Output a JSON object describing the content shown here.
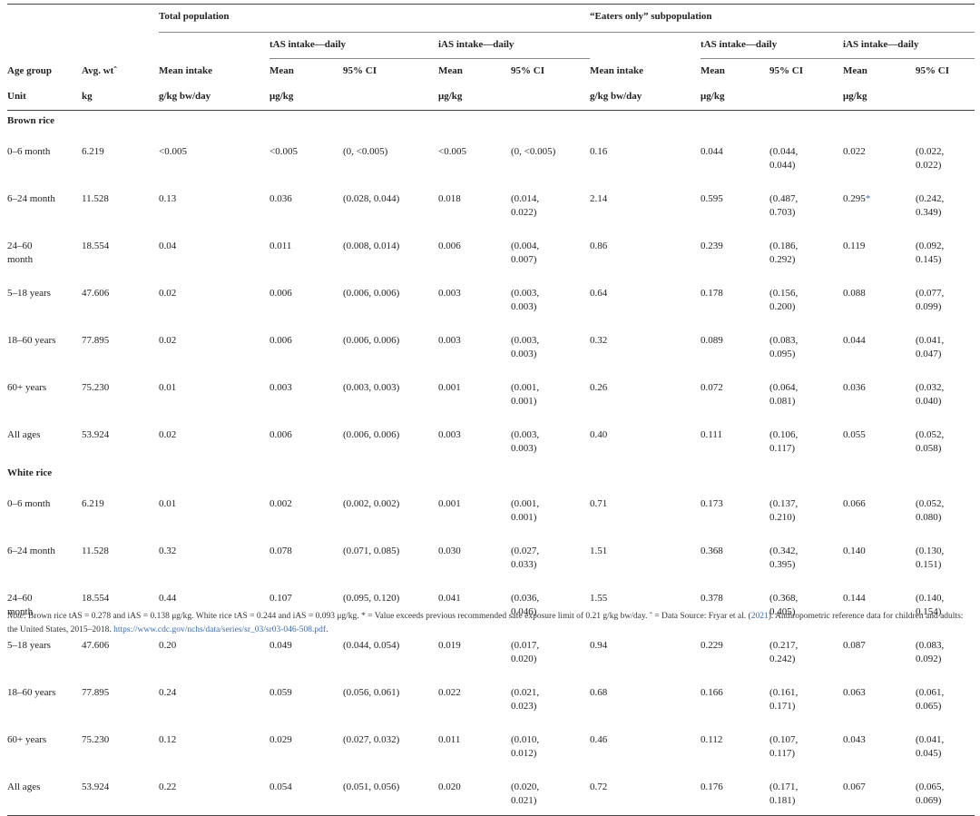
{
  "headers": {
    "total_population": "Total population",
    "eaters_only": "“Eaters only” subpopulation",
    "tas_daily": "tAS intake—daily",
    "ias_daily": "iAS intake—daily",
    "age_group": "Age group",
    "avg_wt": "Avg. wtˆ",
    "mean_intake": "Mean intake",
    "mean": "Mean",
    "ci95": "95% CI",
    "unit": "Unit",
    "kg": "kg",
    "g_per_kg_bw_day": "g/kg bw/day",
    "ug_per_kg": "μg/kg"
  },
  "sections": [
    {
      "title": "Brown rice",
      "rows": [
        {
          "age": "0–6 month",
          "wt": "6.219",
          "t_mi": "<0.005",
          "t_tm": "<0.005",
          "t_tci": "(0, <0.005)",
          "t_im": "<0.005",
          "t_ici": "(0, <0.005)",
          "e_mi": "0.16",
          "e_tm": "0.044",
          "e_tci": "(0.044,\n0.044)",
          "e_im": "0.022",
          "e_ici": "(0.022,\n0.022)"
        },
        {
          "age": "6–24 month",
          "wt": "11.528",
          "t_mi": "0.13",
          "t_tm": "0.036",
          "t_tci": "(0.028, 0.044)",
          "t_im": "0.018",
          "t_ici": "(0.014,\n0.022)",
          "e_mi": "2.14",
          "e_tm": "0.595",
          "e_tci": "(0.487,\n0.703)",
          "e_im": "0.295",
          "e_im_star": "*",
          "e_ici": "(0.242,\n0.349)"
        },
        {
          "age": "24–60\nmonth",
          "wt": "18.554",
          "t_mi": "0.04",
          "t_tm": "0.011",
          "t_tci": "(0.008, 0.014)",
          "t_im": "0.006",
          "t_ici": "(0.004,\n0.007)",
          "e_mi": "0.86",
          "e_tm": "0.239",
          "e_tci": "(0.186,\n0.292)",
          "e_im": "0.119",
          "e_ici": "(0.092,\n0.145)"
        },
        {
          "age": "5–18 years",
          "wt": "47.606",
          "t_mi": "0.02",
          "t_tm": "0.006",
          "t_tci": "(0.006, 0.006)",
          "t_im": "0.003",
          "t_ici": "(0.003,\n0.003)",
          "e_mi": "0.64",
          "e_tm": "0.178",
          "e_tci": "(0.156,\n0.200)",
          "e_im": "0.088",
          "e_ici": "(0.077,\n0.099)"
        },
        {
          "age": "18–60 years",
          "wt": "77.895",
          "t_mi": "0.02",
          "t_tm": "0.006",
          "t_tci": "(0.006, 0.006)",
          "t_im": "0.003",
          "t_ici": "(0.003,\n0.003)",
          "e_mi": "0.32",
          "e_tm": "0.089",
          "e_tci": "(0.083,\n0.095)",
          "e_im": "0.044",
          "e_ici": "(0.041,\n0.047)"
        },
        {
          "age": "60+ years",
          "wt": "75.230",
          "t_mi": "0.01",
          "t_tm": "0.003",
          "t_tci": "(0.003, 0.003)",
          "t_im": "0.001",
          "t_ici": "(0.001,\n0.001)",
          "e_mi": "0.26",
          "e_tm": "0.072",
          "e_tci": "(0.064,\n0.081)",
          "e_im": "0.036",
          "e_ici": "(0.032,\n0.040)"
        },
        {
          "age": "All ages",
          "wt": "53.924",
          "t_mi": "0.02",
          "t_tm": "0.006",
          "t_tci": "(0.006, 0.006)",
          "t_im": "0.003",
          "t_ici": "(0.003,\n0.003)",
          "e_mi": "0.40",
          "e_tm": "0.111",
          "e_tci": "(0.106,\n0.117)",
          "e_im": "0.055",
          "e_ici": "(0.052,\n0.058)"
        }
      ]
    },
    {
      "title": "White rice",
      "rows": [
        {
          "age": "0–6 month",
          "wt": "6.219",
          "t_mi": "0.01",
          "t_tm": "0.002",
          "t_tci": "(0.002, 0.002)",
          "t_im": "0.001",
          "t_ici": "(0.001,\n0.001)",
          "e_mi": "0.71",
          "e_tm": "0.173",
          "e_tci": "(0.137,\n0.210)",
          "e_im": "0.066",
          "e_ici": "(0.052,\n0.080)"
        },
        {
          "age": "6–24 month",
          "wt": "11.528",
          "t_mi": "0.32",
          "t_tm": "0.078",
          "t_tci": "(0.071, 0.085)",
          "t_im": "0.030",
          "t_ici": "(0.027,\n0.033)",
          "e_mi": "1.51",
          "e_tm": "0.368",
          "e_tci": "(0.342,\n0.395)",
          "e_im": "0.140",
          "e_ici": "(0.130,\n0.151)"
        },
        {
          "age": "24–60\nmonth",
          "wt": "18.554",
          "t_mi": "0.44",
          "t_tm": "0.107",
          "t_tci": "(0.095, 0.120)",
          "t_im": "0.041",
          "t_ici": "(0.036,\n0.046)",
          "e_mi": "1.55",
          "e_tm": "0.378",
          "e_tci": "(0.368,\n0.405)",
          "e_im": "0.144",
          "e_ici": "(0.140,\n0.154)"
        },
        {
          "age": "5–18 years",
          "wt": "47.606",
          "t_mi": "0.20",
          "t_tm": "0.049",
          "t_tci": "(0.044, 0.054)",
          "t_im": "0.019",
          "t_ici": "(0.017,\n0.020)",
          "e_mi": "0.94",
          "e_tm": "0.229",
          "e_tci": "(0.217,\n0.242)",
          "e_im": "0.087",
          "e_ici": "(0.083,\n0.092)"
        },
        {
          "age": "18–60 years",
          "wt": "77.895",
          "t_mi": "0.24",
          "t_tm": "0.059",
          "t_tci": "(0.056, 0.061)",
          "t_im": "0.022",
          "t_ici": "(0.021,\n0.023)",
          "e_mi": "0.68",
          "e_tm": "0.166",
          "e_tci": "(0.161,\n0.171)",
          "e_im": "0.063",
          "e_ici": "(0.061,\n0.065)"
        },
        {
          "age": "60+ years",
          "wt": "75.230",
          "t_mi": "0.12",
          "t_tm": "0.029",
          "t_tci": "(0.027, 0.032)",
          "t_im": "0.011",
          "t_ici": "(0.010,\n0.012)",
          "e_mi": "0.46",
          "e_tm": "0.112",
          "e_tci": "(0.107,\n0.117)",
          "e_im": "0.043",
          "e_ici": "(0.041,\n0.045)"
        },
        {
          "age": "All ages",
          "wt": "53.924",
          "t_mi": "0.22",
          "t_tm": "0.054",
          "t_tci": "(0.051, 0.056)",
          "t_im": "0.020",
          "t_ici": "(0.020,\n0.021)",
          "e_mi": "0.72",
          "e_tm": "0.176",
          "e_tci": "(0.171,\n0.181)",
          "e_im": "0.067",
          "e_ici": "(0.065,\n0.069)"
        }
      ]
    }
  ],
  "note": {
    "label": "Note",
    "text1": ": Brown rice tAS = 0.278 and iAS = 0.138 μg/kg. White rice tAS = 0.244 and iAS = 0.093 μg/kg. * = Value exceeds previous recommended safe exposure limit of 0.21 g/kg bw/day. ˆ = Data Source: Fryar et al. (",
    "cite": "2021",
    "text2": "). Anthropometric reference data for children and adults: the United States, 2015–2018. ",
    "link": "https://www.cdc.gov/nchs/data/series/sr_03/sr03-046-508.pdf",
    "end": "."
  }
}
